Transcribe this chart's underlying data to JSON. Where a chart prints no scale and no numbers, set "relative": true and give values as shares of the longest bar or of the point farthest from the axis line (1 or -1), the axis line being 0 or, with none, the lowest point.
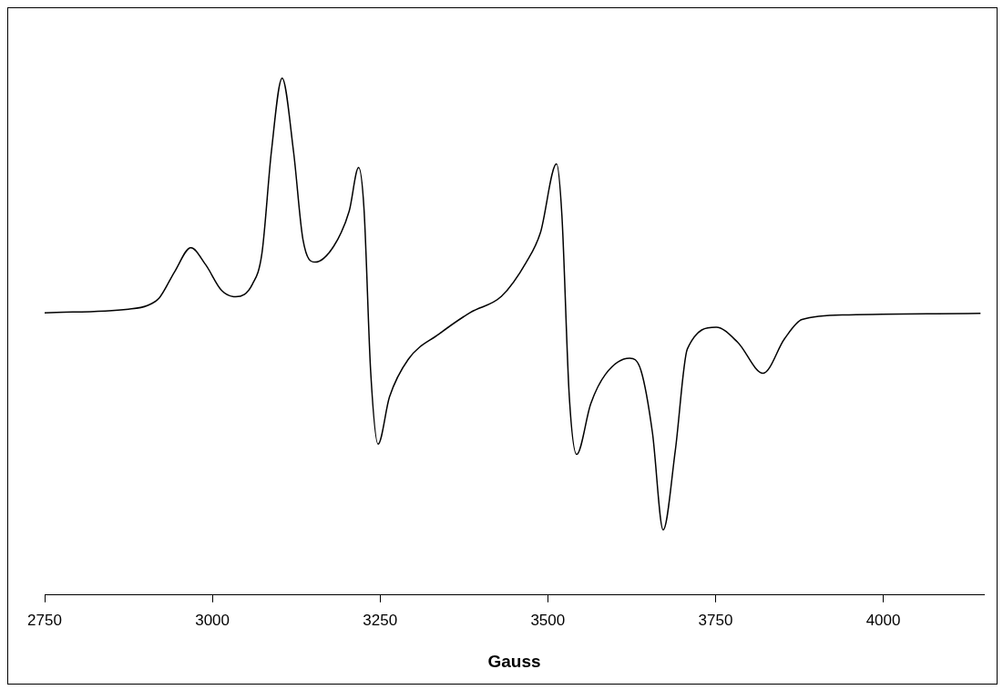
{
  "chart_data": {
    "type": "line",
    "relative": true,
    "xlabel": "Gauss",
    "xlim": [
      2750,
      4150
    ],
    "xticks": [
      2750,
      3000,
      3250,
      3500,
      3750,
      4000
    ],
    "grid": false,
    "legend": false,
    "marker": "none",
    "line_style": "solid",
    "series": [
      {
        "color": "#000000",
        "x": [
          2750,
          2875,
          2903,
          2921,
          2944,
          2968,
          2990,
          3014,
          3035,
          3060,
          3074,
          3088,
          3104,
          3121,
          3135,
          3153,
          3181,
          3204,
          3218,
          3226,
          3236,
          3247,
          3264,
          3292,
          3338,
          3385,
          3431,
          3468,
          3489,
          3513,
          3521,
          3532,
          3543,
          3564,
          3586,
          3622,
          3639,
          3656,
          3672,
          3690,
          3708,
          3751,
          3783,
          3821,
          3853,
          3879,
          3949,
          4145
        ],
        "values": [
          0.546,
          0.553,
          0.56,
          0.575,
          0.626,
          0.672,
          0.639,
          0.589,
          0.577,
          0.602,
          0.662,
          0.858,
          1.0,
          0.858,
          0.688,
          0.644,
          0.675,
          0.743,
          0.827,
          0.748,
          0.432,
          0.292,
          0.383,
          0.456,
          0.505,
          0.547,
          0.578,
          0.644,
          0.701,
          0.834,
          0.735,
          0.385,
          0.272,
          0.37,
          0.427,
          0.458,
          0.434,
          0.314,
          0.126,
          0.279,
          0.476,
          0.518,
          0.489,
          0.429,
          0.496,
          0.533,
          0.542,
          0.545
        ]
      }
    ]
  }
}
